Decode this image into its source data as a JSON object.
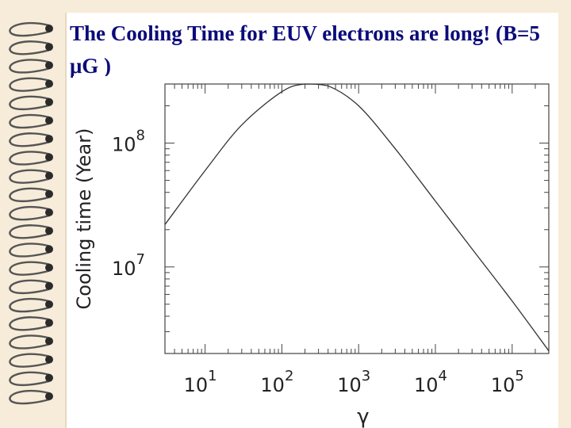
{
  "slide": {
    "title": "The Cooling Time for EUV electrons are long! (B=5 μG )"
  },
  "colors": {
    "background": "#f7ecd9",
    "title": "#0b0b7a",
    "line": "#333333",
    "axes": "#444444"
  },
  "decorations": {
    "spiral_binding_icon": "spiral-binding-icon"
  },
  "chart_data": {
    "type": "line",
    "title": "",
    "xlabel": "γ",
    "ylabel": "Cooling time (Year)",
    "x_scale": "log",
    "y_scale": "log",
    "xlim": [
      3,
      300000
    ],
    "ylim": [
      2000000,
      300000000
    ],
    "x_ticks": [
      {
        "value": 10,
        "label_base": "10",
        "label_exp": "1"
      },
      {
        "value": 100,
        "label_base": "10",
        "label_exp": "2"
      },
      {
        "value": 1000,
        "label_base": "10",
        "label_exp": "3"
      },
      {
        "value": 10000,
        "label_base": "10",
        "label_exp": "4"
      },
      {
        "value": 100000,
        "label_base": "10",
        "label_exp": "5"
      }
    ],
    "y_ticks": [
      {
        "value": 10000000,
        "label_base": "10",
        "label_exp": "7"
      },
      {
        "value": 100000000,
        "label_base": "10",
        "label_exp": "8"
      }
    ],
    "series": [
      {
        "name": "",
        "x": [
          3,
          10,
          30,
          100,
          200,
          400,
          1000,
          3000,
          10000,
          30000,
          100000,
          300000
        ],
        "y": [
          22000000,
          60000000,
          140000000,
          260000000,
          300000000,
          290000000,
          200000000,
          90000000,
          34000000,
          14000000,
          5300000,
          2100000
        ]
      }
    ],
    "grid": false
  }
}
